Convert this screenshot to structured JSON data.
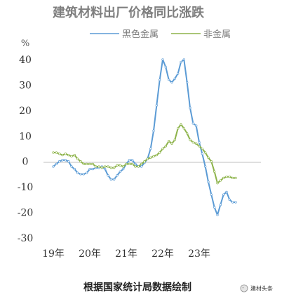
{
  "chart_data": {
    "type": "line",
    "title": "建筑材料出厂价格同比涨跌",
    "y_unit": "%",
    "ylim": [
      -30,
      40
    ],
    "y_ticks": [
      "40",
      "30",
      "20",
      "10",
      "0",
      "-10",
      "-20",
      "-30"
    ],
    "y_tick_values": [
      40,
      30,
      20,
      10,
      0,
      -10,
      -20,
      -30
    ],
    "x_tick_labels": [
      "19年",
      "20年",
      "21年",
      "22年",
      "23年"
    ],
    "legend_position": "top",
    "grid": false,
    "series": [
      {
        "name": "黑色金属",
        "color": "#5b9bd5",
        "values": [
          -2.0,
          -1.0,
          0.0,
          0.5,
          0.5,
          0.0,
          -2.0,
          -3.0,
          -4.5,
          -5.0,
          -5.0,
          -4.5,
          -3.0,
          -3.0,
          -2.5,
          -2.5,
          -2.0,
          -3.0,
          -5.5,
          -7.0,
          -7.0,
          -5.5,
          -4.0,
          -3.0,
          -1.0,
          0.5,
          0.5,
          -1.0,
          -2.0,
          -2.0,
          -0.5,
          1.0,
          5.0,
          12.0,
          22.0,
          32.0,
          40.0,
          37.0,
          32.0,
          31.0,
          32.5,
          34.5,
          39.0,
          40.0,
          31.0,
          21.0,
          15.0,
          14.0,
          7.5,
          3.0,
          -2.0,
          -8.0,
          -13.0,
          -18.0,
          -21.0,
          -17.0,
          -13.0,
          -12.0,
          -15.0,
          -16.0,
          -16.0
        ]
      },
      {
        "name": "非金属",
        "color": "#8db34a",
        "values": [
          3.5,
          3.5,
          3.0,
          2.5,
          3.0,
          2.5,
          2.0,
          2.5,
          1.0,
          0.0,
          -1.0,
          -1.0,
          -1.0,
          -1.0,
          -2.0,
          -2.0,
          -2.5,
          -2.0,
          -2.0,
          -2.5,
          -2.5,
          -1.5,
          -1.5,
          -2.0,
          -1.0,
          -1.0,
          -1.0,
          -2.0,
          -2.0,
          -1.0,
          0.0,
          1.0,
          1.5,
          2.0,
          2.5,
          3.5,
          5.0,
          6.0,
          8.0,
          7.0,
          8.5,
          13.0,
          14.5,
          13.0,
          11.0,
          8.5,
          7.5,
          7.0,
          6.0,
          5.0,
          3.5,
          1.5,
          0.0,
          -4.0,
          -8.5,
          -7.5,
          -6.5,
          -6.0,
          -6.0,
          -6.5,
          -6.5
        ]
      }
    ]
  },
  "footer": {
    "source": "根据国家统计局数据绘制",
    "watermark": "建材头条"
  }
}
